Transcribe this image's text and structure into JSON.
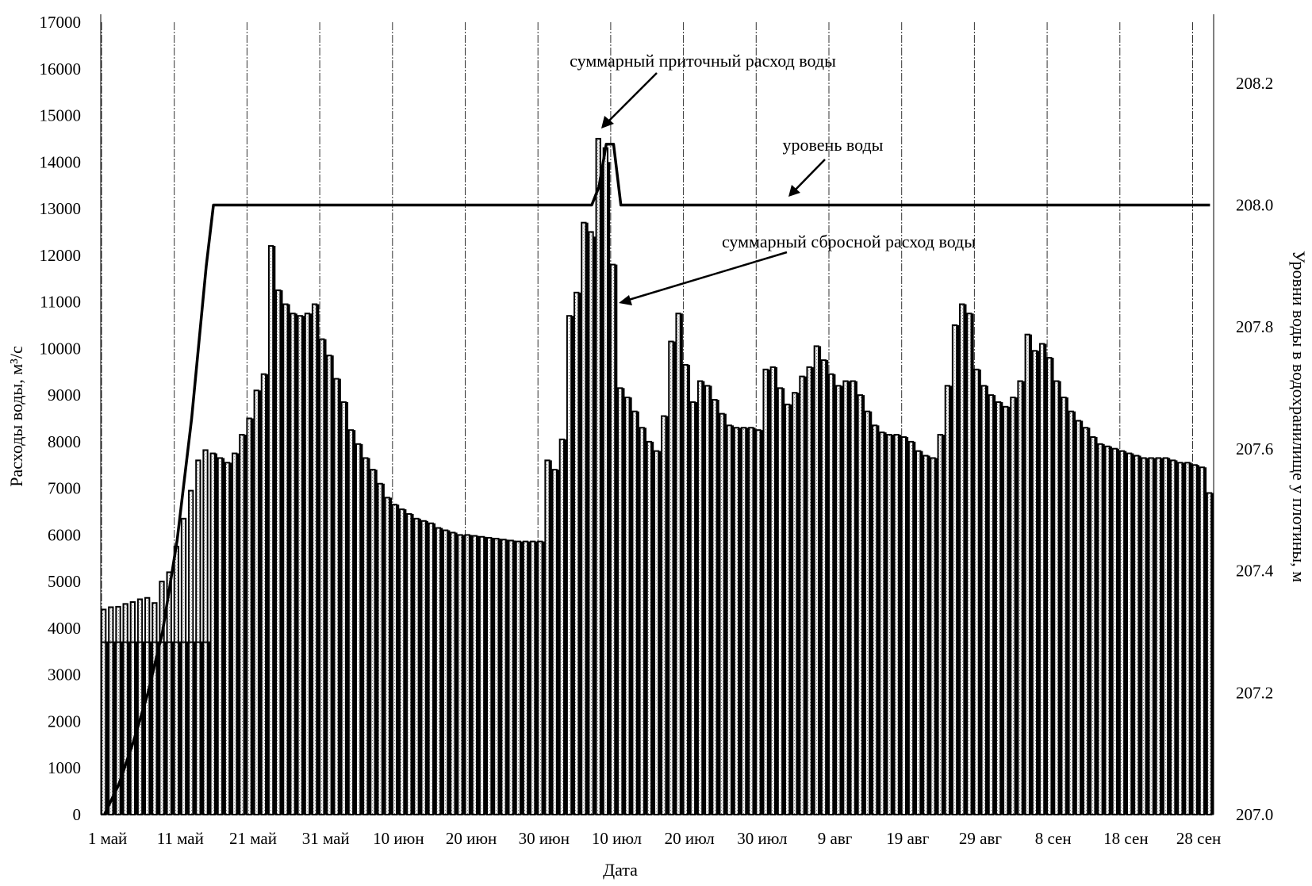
{
  "chart_data": {
    "type": "bar+line",
    "xlabel": "Дата",
    "ylabel": "Расходы воды, м³/с",
    "ylabel_right": "Уровни воды в водохранилище у плотины, м",
    "ylim": [
      0,
      17000
    ],
    "ylim_right": [
      207.0,
      208.3
    ],
    "yticks": [
      0,
      1000,
      2000,
      3000,
      4000,
      5000,
      6000,
      7000,
      8000,
      9000,
      10000,
      11000,
      12000,
      13000,
      14000,
      15000,
      16000,
      17000
    ],
    "yticks_right": [
      "207.0",
      "207.2",
      "207.4",
      "207.6",
      "207.8",
      "208.0",
      "208.2"
    ],
    "xtick_labels": [
      "1 май",
      "11 май",
      "21 май",
      "31 май",
      "10 июн",
      "20 июн",
      "30 июн",
      "10 июл",
      "20 июл",
      "30 июл",
      "9 авг",
      "19 авг",
      "29 авг",
      "8 сен",
      "18 сен",
      "28 сен"
    ],
    "xtick_every_days": 10,
    "grid": "vertical",
    "annotations": {
      "inflow": "суммарный приточный расход воды",
      "level": "уровень воды",
      "discharge": "суммарный сбросной расход воды"
    },
    "series": [
      {
        "name": "суммарный приточный расход воды",
        "kind": "bar",
        "values": [
          4400,
          4450,
          4460,
          4520,
          4560,
          4620,
          4650,
          4540,
          5000,
          5200,
          5750,
          6350,
          6950,
          7600,
          7820,
          7750,
          7650,
          7550,
          7750,
          8150,
          8500,
          9100,
          9450,
          12200,
          11250,
          10950,
          10750,
          10700,
          10750,
          10950,
          10200,
          9850,
          9350,
          8850,
          8250,
          7950,
          7650,
          7400,
          7100,
          6800,
          6650,
          6550,
          6450,
          6350,
          6300,
          6250,
          6150,
          6100,
          6050,
          6000,
          6000,
          5980,
          5960,
          5940,
          5920,
          5900,
          5880,
          5860,
          5860,
          5860,
          5860,
          7600,
          7400,
          8050,
          10700,
          11200,
          12700,
          12500,
          14500,
          14300,
          11800,
          9150,
          8950,
          8650,
          8300,
          8000,
          7800,
          8550,
          10150,
          10750,
          9650,
          8850,
          9300,
          9200,
          8900,
          8600,
          8350,
          8300,
          8300,
          8300,
          8250,
          9550,
          9600,
          9150,
          8800,
          9050,
          9400,
          9600,
          10050,
          9750,
          9450,
          9200,
          9300,
          9300,
          9000,
          8650,
          8350,
          8200,
          8150,
          8150,
          8100,
          8000,
          7800,
          7700,
          7650,
          8150,
          9200,
          10500,
          10950,
          10750,
          9550,
          9200,
          9000,
          8850,
          8750,
          8950,
          9300,
          10300,
          9950,
          10100,
          9800,
          9300,
          8950,
          8650,
          8450,
          8300,
          8100,
          7950,
          7900,
          7850,
          7800,
          7750,
          7700,
          7650,
          7650,
          7650,
          7650,
          7600,
          7550,
          7550,
          7500,
          7450,
          6900
        ]
      },
      {
        "name": "суммарный сбросной расход воды",
        "kind": "bar",
        "values": [
          3700,
          3700,
          3700,
          3700,
          3700,
          3700,
          3700,
          3700,
          3700,
          3700,
          3700,
          3700,
          3700,
          3700,
          3700,
          7750,
          7650,
          7550,
          7750,
          8150,
          8500,
          9100,
          9450,
          12200,
          11250,
          10950,
          10750,
          10700,
          10750,
          10950,
          10200,
          9850,
          9350,
          8850,
          8250,
          7950,
          7650,
          7400,
          7100,
          6800,
          6650,
          6550,
          6450,
          6350,
          6300,
          6250,
          6150,
          6100,
          6050,
          6000,
          6000,
          5980,
          5960,
          5940,
          5920,
          5900,
          5880,
          5860,
          5860,
          5860,
          5860,
          7600,
          7400,
          8050,
          10700,
          11200,
          12700,
          12400,
          13800,
          14000,
          11800,
          9150,
          8950,
          8650,
          8300,
          8000,
          7800,
          8550,
          10150,
          10750,
          9650,
          8850,
          9300,
          9200,
          8900,
          8600,
          8350,
          8300,
          8300,
          8300,
          8250,
          9550,
          9600,
          9150,
          8800,
          9050,
          9400,
          9600,
          10050,
          9750,
          9450,
          9200,
          9300,
          9300,
          9000,
          8650,
          8350,
          8200,
          8150,
          8150,
          8100,
          8000,
          7800,
          7700,
          7650,
          8150,
          9200,
          10500,
          10950,
          10750,
          9550,
          9200,
          9000,
          8850,
          8750,
          8950,
          9300,
          10300,
          9950,
          10100,
          9800,
          9300,
          8950,
          8650,
          8450,
          8300,
          8100,
          7950,
          7900,
          7850,
          7800,
          7750,
          7700,
          7650,
          7650,
          7650,
          7650,
          7600,
          7550,
          7550,
          7500,
          7450,
          6900
        ]
      },
      {
        "name": "уровень воды",
        "kind": "line",
        "axis": "right",
        "points": [
          [
            0,
            207.0
          ],
          [
            2,
            207.05
          ],
          [
            4,
            207.12
          ],
          [
            6,
            207.2
          ],
          [
            8,
            207.3
          ],
          [
            10,
            207.45
          ],
          [
            12,
            207.65
          ],
          [
            14,
            207.9
          ],
          [
            15,
            208.0
          ],
          [
            16,
            208.0
          ],
          [
            67,
            208.0
          ],
          [
            68,
            208.03
          ],
          [
            69,
            208.1
          ],
          [
            70,
            208.1
          ],
          [
            71,
            208.0
          ],
          [
            152,
            208.0
          ]
        ]
      }
    ]
  }
}
